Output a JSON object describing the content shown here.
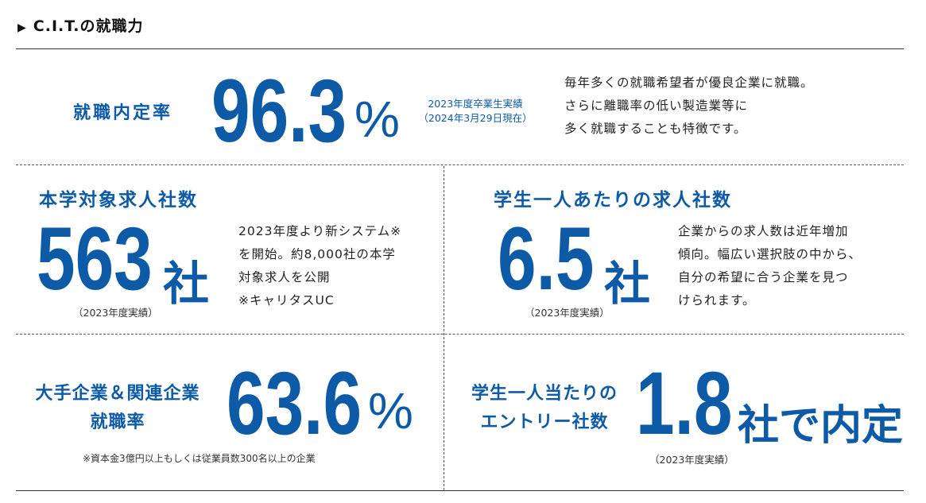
{
  "section": {
    "title": "C.I.T.の就職力",
    "arrow_icon": "triangle-right-icon"
  },
  "stats": {
    "employment_rate": {
      "label": "就職内定率",
      "value": "96.3",
      "unit": "%",
      "note_line1": "2023年度卒業生実績",
      "note_line2": "（2024年3月29日現在）",
      "description": [
        "毎年多くの就職希望者が優良企業に就職。",
        "さらに離職率の低い製造業等に",
        "多く就職することも特徴です。"
      ]
    },
    "job_offer_companies": {
      "label": "本学対象求人社数",
      "value": "563",
      "unit": "社",
      "note": "（2023年度実績）",
      "description": [
        "2023年度より新システム※",
        "を開始。約8,000社の本学",
        "対象求人を公開",
        "※キャリタスUC"
      ]
    },
    "offers_per_student": {
      "label": "学生一人あたりの求人社数",
      "value": "6.5",
      "unit": "社",
      "note": "（2023年度実績）",
      "description": [
        "企業からの求人数は近年増加",
        "傾向。幅広い選択肢の中から、",
        "自分の希望に合う企業を見つ",
        "けられます。"
      ]
    },
    "major_company_rate": {
      "label_line1": "大手企業＆関連企業",
      "label_line2": "就職率",
      "value": "63.6",
      "unit": "%",
      "note": "※資本金3億円以上もしくは従業員数300名以上の企業"
    },
    "entries_per_student": {
      "label_line1": "学生一人当たりの",
      "label_line2": "エントリー社数",
      "value": "1.8",
      "unit": "社で内定",
      "note": "（2023年度実績）"
    }
  },
  "colors": {
    "accent": "#0d5aa7",
    "text": "#222222"
  }
}
